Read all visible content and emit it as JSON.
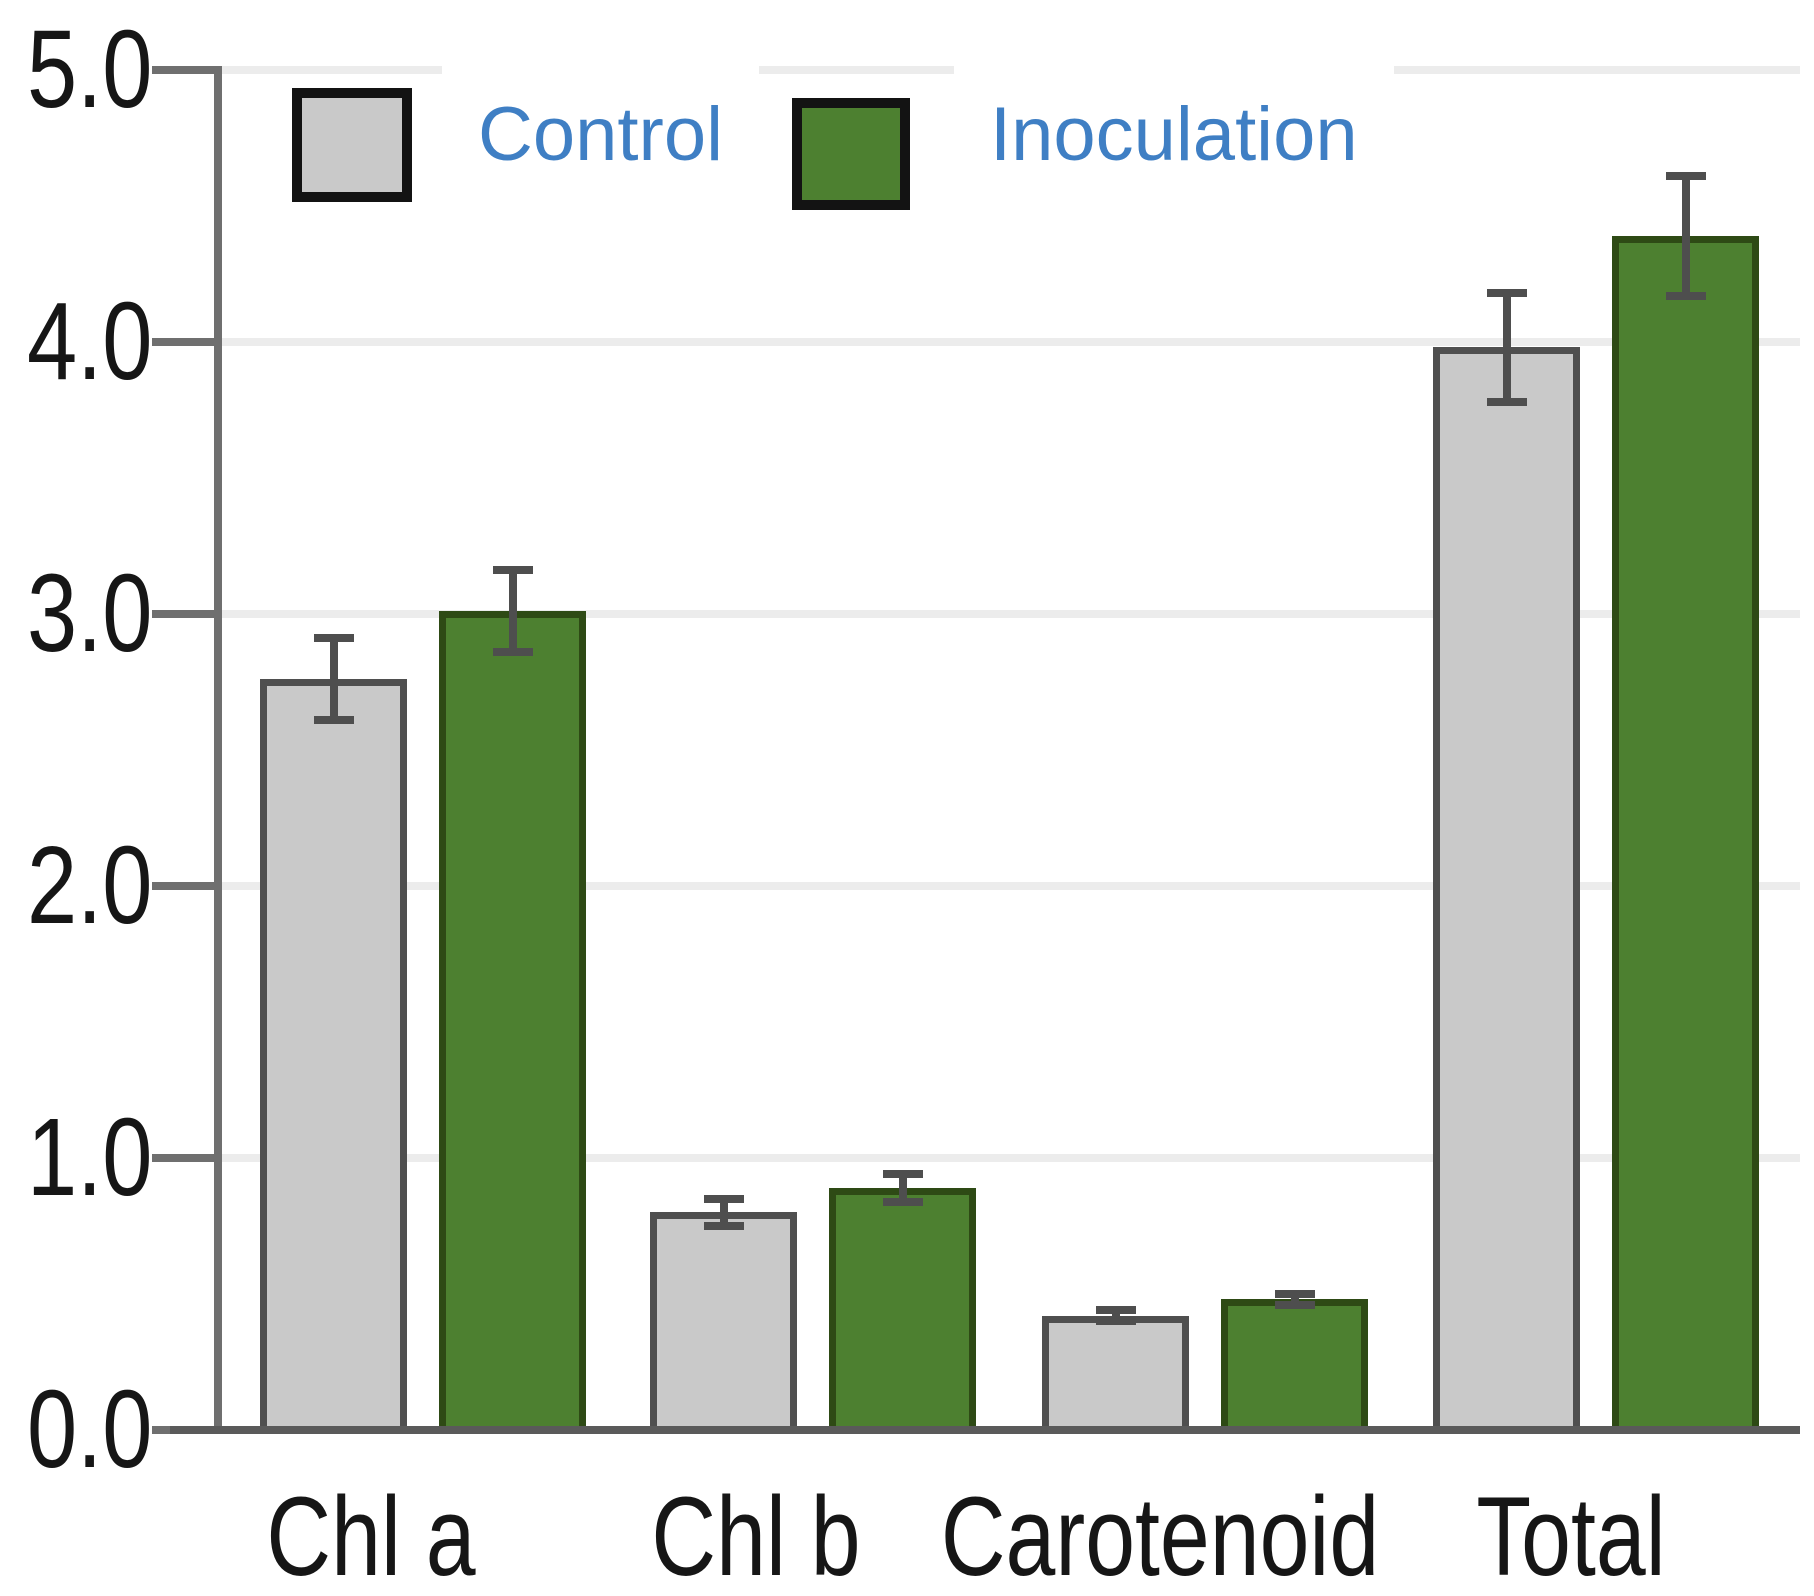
{
  "chart_data": {
    "type": "bar",
    "title": "",
    "categories": [
      "Chl a",
      "Chl b",
      "Carotenoid",
      "Total"
    ],
    "series": [
      {
        "name": "Control",
        "color": "#c9c9c9",
        "border_color": "#4f4f4f",
        "values": [
          2.76,
          0.8,
          0.42,
          3.98
        ],
        "errors": [
          0.15,
          0.05,
          0.02,
          0.2
        ]
      },
      {
        "name": "Inoculation",
        "color": "#4d8030",
        "border_color": "#2e4a15",
        "values": [
          3.01,
          0.89,
          0.48,
          4.39
        ],
        "errors": [
          0.15,
          0.05,
          0.02,
          0.22
        ]
      }
    ],
    "xlabel": "",
    "ylabel": "",
    "ylim": [
      0,
      5
    ],
    "ytick_labels": [
      "0.0",
      "1.0",
      "2.0",
      "3.0",
      "4.0",
      "5.0"
    ],
    "grid": true,
    "legend_position": "top",
    "legend_text_color": "#3f7fc4",
    "axis_color": "#6f6f6f",
    "baseline_color": "#5a5a5a",
    "gridline_color": "#ececec",
    "errorbar_color": "#4e4e4e",
    "tick_label_color": "#161616"
  }
}
